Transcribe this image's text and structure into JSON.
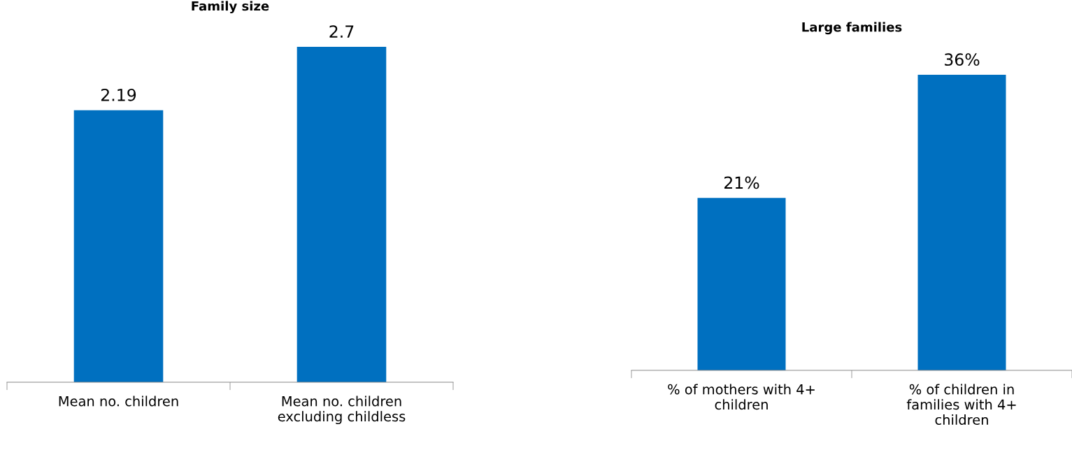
{
  "chart_data": [
    {
      "type": "bar",
      "title": "Family size",
      "categories": [
        "Mean no. children",
        "Mean no. children\nexcluding childless"
      ],
      "values": [
        2.19,
        2.7
      ],
      "color": "#0070c0",
      "data_labels": true,
      "grid": false,
      "legend": false,
      "tick_labels": "x"
    },
    {
      "type": "bar",
      "title": "Large families",
      "categories": [
        "% of mothers with 4+\nchildren",
        "% of children in\nfamilies with 4+\nchildren"
      ],
      "values": [
        21,
        36
      ],
      "value_labels": [
        "21%",
        "36%"
      ],
      "color": "#0070c0",
      "grid": false,
      "legend": false,
      "tick_labels": "x"
    }
  ]
}
